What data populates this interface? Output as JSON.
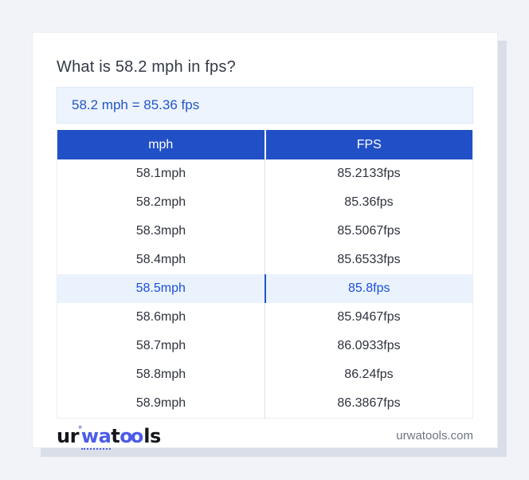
{
  "card": {
    "title": "What is 58.2 mph in fps?",
    "result_text": "58.2 mph = 85.36 fps"
  },
  "table": {
    "headers": [
      "mph",
      "FPS"
    ],
    "rows": [
      {
        "mph": "58.1mph",
        "fps": "85.2133fps",
        "highlighted": false
      },
      {
        "mph": "58.2mph",
        "fps": "85.36fps",
        "highlighted": false
      },
      {
        "mph": "58.3mph",
        "fps": "85.5067fps",
        "highlighted": false
      },
      {
        "mph": "58.4mph",
        "fps": "85.6533fps",
        "highlighted": false
      },
      {
        "mph": "58.5mph",
        "fps": "85.8fps",
        "highlighted": true
      },
      {
        "mph": "58.6mph",
        "fps": "85.9467fps",
        "highlighted": false
      },
      {
        "mph": "58.7mph",
        "fps": "86.0933fps",
        "highlighted": false
      },
      {
        "mph": "58.8mph",
        "fps": "86.24fps",
        "highlighted": false
      },
      {
        "mph": "58.9mph",
        "fps": "86.3867fps",
        "highlighted": false
      }
    ]
  },
  "footer": {
    "logo": {
      "seg1": "ur",
      "deg": "°",
      "seg2": "wa",
      "seg3": "t",
      "seg4": "oo",
      "seg5": "ls"
    },
    "website": "urwatools.com"
  },
  "colors": {
    "accent_blue": "#2150c6",
    "result_text_blue": "#2456c4",
    "highlight_text_blue": "#1d4ed8",
    "highlight_bg": "#eaf3fd",
    "result_bg": "#edf4fd",
    "page_bg": "#f1f3f9",
    "logo_blue": "#4c5ce8",
    "shadow_color": "#d9dee9"
  }
}
